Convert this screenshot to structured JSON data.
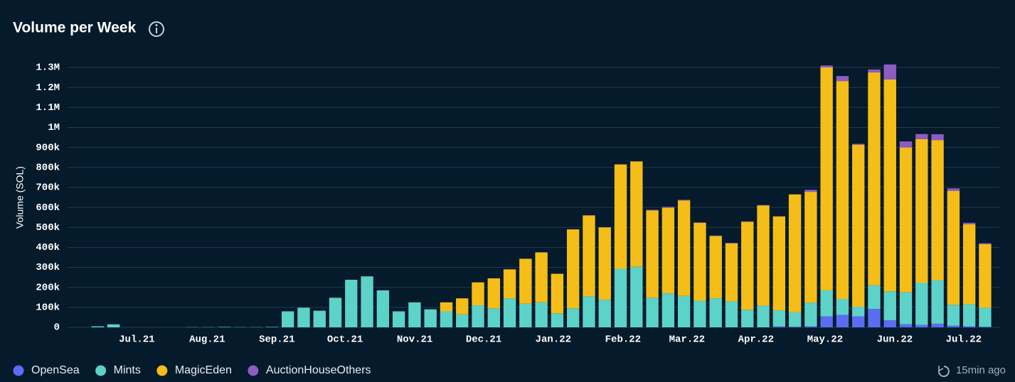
{
  "chart_data": {
    "type": "stacked_bar",
    "title": "Volume per Week",
    "updated": "15min ago",
    "y_label": "Volume (SOL)",
    "x": [
      0,
      1,
      2,
      3,
      4,
      5,
      6,
      7,
      8,
      9,
      10,
      11,
      12,
      13,
      14,
      15,
      16,
      17,
      18,
      19,
      20,
      21,
      22,
      23,
      24,
      25,
      26,
      27,
      28,
      29,
      30,
      31,
      32,
      33,
      34,
      35,
      36,
      37,
      38,
      39,
      40,
      41,
      42,
      43,
      44,
      45,
      46,
      47,
      48,
      49,
      50,
      51,
      52,
      53,
      54,
      55,
      56
    ],
    "xlim": [
      -1.9,
      56.9
    ],
    "xticks": [
      {
        "value": 2.47,
        "label": "Jul.21"
      },
      {
        "value": 6.91,
        "label": "Aug.21"
      },
      {
        "value": 11.31,
        "label": "Sep.21"
      },
      {
        "value": 15.61,
        "label": "Oct.21"
      },
      {
        "value": 20.01,
        "label": "Nov.21"
      },
      {
        "value": 24.36,
        "label": "Dec.21"
      },
      {
        "value": 28.75,
        "label": "Jan.22"
      },
      {
        "value": 33.15,
        "label": "Feb.22"
      },
      {
        "value": 37.19,
        "label": "Mar.22"
      },
      {
        "value": 41.54,
        "label": "Apr.22"
      },
      {
        "value": 45.9,
        "label": "May.22"
      },
      {
        "value": 50.3,
        "label": "Jun.22"
      },
      {
        "value": 54.65,
        "label": "Jul.22"
      }
    ],
    "ylim": [
      0,
      1300000
    ],
    "yticks": [
      0,
      {
        "value": 100000,
        "label": "100k"
      },
      {
        "value": 200000,
        "label": "200k"
      },
      {
        "value": 300000,
        "label": "300k"
      },
      {
        "value": 400000,
        "label": "400k"
      },
      {
        "value": 500000,
        "label": "500k"
      },
      {
        "value": 600000,
        "label": "600k"
      },
      {
        "value": 700000,
        "label": "700k"
      },
      {
        "value": 800000,
        "label": "800k"
      },
      {
        "value": 900000,
        "label": "900k"
      },
      {
        "value": 1000000,
        "label": "1M"
      },
      {
        "value": 1100000,
        "label": "1.1M"
      },
      {
        "value": 1200000,
        "label": "1.2M"
      },
      {
        "value": 1300000,
        "label": "1.3M"
      }
    ],
    "grid": true,
    "legend": "bottom-left",
    "series": [
      {
        "name": "OpenSea",
        "color": "#5b6cf3",
        "values": [
          0,
          0,
          0,
          0,
          0,
          0,
          0,
          0,
          0,
          0,
          0,
          0,
          0,
          0,
          0,
          0,
          0,
          0,
          0,
          0,
          0,
          0,
          0,
          0,
          0,
          0,
          0,
          0,
          0,
          0,
          0,
          0,
          0,
          0,
          0,
          0,
          0,
          0,
          0,
          0,
          0,
          0,
          0,
          5000,
          3000,
          5000,
          55000,
          62000,
          55000,
          92000,
          35000,
          15000,
          12000,
          18000,
          8000,
          5000,
          3000
        ]
      },
      {
        "name": "Mints",
        "color": "#5cd2c8",
        "values": [
          5000,
          15000,
          0,
          0,
          0,
          0,
          1000,
          1000,
          2000,
          1000,
          1000,
          2000,
          80000,
          98000,
          83000,
          148000,
          238000,
          255000,
          185000,
          80000,
          125000,
          90000,
          80000,
          65000,
          110000,
          95000,
          145000,
          118000,
          125000,
          70000,
          95000,
          155000,
          138000,
          293000,
          303000,
          148000,
          170000,
          157000,
          133000,
          145000,
          130000,
          88000,
          108000,
          80000,
          72000,
          118000,
          130000,
          80000,
          48000,
          118000,
          145000,
          160000,
          210000,
          218000,
          105000,
          110000,
          95000
        ]
      },
      {
        "name": "MagicEden",
        "color": "#f5bd18",
        "values": [
          0,
          0,
          0,
          0,
          0,
          0,
          0,
          0,
          0,
          0,
          0,
          0,
          0,
          0,
          0,
          0,
          0,
          0,
          0,
          0,
          0,
          0,
          45000,
          80000,
          115000,
          150000,
          145000,
          225000,
          250000,
          198000,
          395000,
          405000,
          362000,
          522000,
          527000,
          437000,
          428000,
          478000,
          390000,
          312000,
          290000,
          440000,
          502000,
          470000,
          590000,
          555000,
          1115000,
          1090000,
          810000,
          1065000,
          1060000,
          725000,
          720000,
          700000,
          570000,
          400000,
          318000
        ]
      },
      {
        "name": "AuctionHouseOthers",
        "color": "#8d5cc2",
        "values": [
          0,
          0,
          0,
          0,
          0,
          0,
          0,
          0,
          0,
          0,
          0,
          0,
          0,
          0,
          0,
          0,
          0,
          0,
          0,
          0,
          0,
          0,
          0,
          0,
          0,
          0,
          0,
          0,
          0,
          0,
          0,
          0,
          0,
          0,
          0,
          3000,
          5000,
          3000,
          2000,
          2000,
          3000,
          2000,
          2000,
          0,
          0,
          10000,
          10000,
          25000,
          5000,
          15000,
          75000,
          30000,
          25000,
          30000,
          12000,
          8000,
          5000
        ]
      }
    ]
  }
}
